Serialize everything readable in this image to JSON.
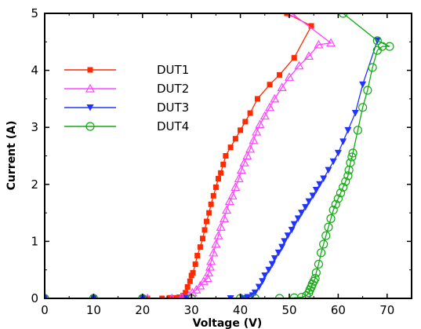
{
  "chart_data": {
    "type": "line",
    "xlabel": "Voltage (V)",
    "ylabel": "Current (A)",
    "xlim": [
      0,
      75
    ],
    "ylim": [
      0,
      5
    ],
    "xticks": [
      0,
      10,
      20,
      30,
      40,
      50,
      60,
      70
    ],
    "yticks": [
      0,
      1,
      2,
      3,
      4,
      5
    ],
    "grid": false,
    "legend_position": "upper-left",
    "series": [
      {
        "name": "DUT1",
        "color": "#ff2a00",
        "marker": "square",
        "x": [
          0,
          10,
          21,
          24,
          25.5,
          26.5,
          27.5,
          28.3,
          28.8,
          29.2,
          29.7,
          30,
          30.3,
          30.8,
          31.2,
          31.8,
          32.3,
          32.7,
          33.1,
          33.6,
          34,
          34.5,
          35,
          35.5,
          36,
          36.5,
          37,
          38,
          39,
          40,
          41,
          42,
          43.5,
          46,
          48,
          51,
          54.5,
          49.5
        ],
        "y": [
          0,
          0,
          0,
          0,
          0.01,
          0.01,
          0.02,
          0.05,
          0.1,
          0.2,
          0.3,
          0.4,
          0.45,
          0.6,
          0.75,
          0.9,
          1.05,
          1.2,
          1.35,
          1.5,
          1.65,
          1.8,
          1.95,
          2.1,
          2.2,
          2.35,
          2.5,
          2.65,
          2.8,
          2.95,
          3.1,
          3.25,
          3.5,
          3.75,
          3.92,
          4.22,
          4.78,
          5
        ]
      },
      {
        "name": "DUT2",
        "color": "#ff44ff",
        "marker": "triangle-up",
        "x": [
          0,
          10,
          21,
          26,
          28,
          29.5,
          30.2,
          31,
          31.8,
          32.5,
          33.3,
          33.5,
          33.8,
          34,
          34.5,
          35,
          35.5,
          36,
          36.7,
          37.2,
          37.8,
          38.4,
          39,
          39.7,
          40.2,
          40.8,
          41.4,
          42,
          42.7,
          43.3,
          44,
          45,
          46,
          47,
          48.5,
          50,
          52,
          54,
          56,
          58.5,
          50.5
        ],
        "y": [
          0,
          0,
          0,
          0,
          0.02,
          0.05,
          0.1,
          0.15,
          0.22,
          0.3,
          0.35,
          0.45,
          0.55,
          0.65,
          0.8,
          0.95,
          1.1,
          1.25,
          1.4,
          1.55,
          1.7,
          1.8,
          1.95,
          2.1,
          2.25,
          2.38,
          2.5,
          2.62,
          2.77,
          2.92,
          3.05,
          3.2,
          3.35,
          3.5,
          3.7,
          3.88,
          4.08,
          4.25,
          4.45,
          4.48,
          5
        ]
      },
      {
        "name": "DUT3",
        "color": "#2233ff",
        "marker": "triangle-down",
        "x": [
          0,
          10,
          20,
          29,
          38,
          40.5,
          41.5,
          42.5,
          43,
          43.8,
          44.5,
          45,
          45.8,
          46.5,
          47,
          47.8,
          48.5,
          49,
          49.7,
          50.5,
          51,
          51.8,
          52.5,
          53.3,
          54,
          54.8,
          55.5,
          56.2,
          57,
          58,
          59,
          60,
          61,
          62,
          63.5,
          65,
          68
        ],
        "y": [
          0,
          0,
          0,
          0,
          0,
          0,
          0.02,
          0.05,
          0.1,
          0.2,
          0.3,
          0.4,
          0.5,
          0.6,
          0.7,
          0.8,
          0.9,
          1.0,
          1.1,
          1.2,
          1.3,
          1.4,
          1.5,
          1.6,
          1.7,
          1.8,
          1.9,
          2.0,
          2.1,
          2.25,
          2.4,
          2.55,
          2.75,
          2.95,
          3.25,
          3.75,
          4.52
        ]
      },
      {
        "name": "DUT4",
        "color": "#11aa11",
        "marker": "circle",
        "x": [
          0,
          10,
          20,
          30,
          40,
          43,
          48,
          51,
          52.5,
          53.5,
          54,
          54.2,
          54.5,
          54.7,
          55,
          55.3,
          55.5,
          56,
          56.5,
          57,
          57.5,
          58,
          58.5,
          59,
          59.5,
          60,
          60.5,
          61,
          61.5,
          62,
          62.2,
          62.5,
          62.8,
          63,
          64,
          65,
          66,
          67,
          68,
          69,
          70.5,
          68,
          61
        ],
        "y": [
          0,
          0,
          0,
          0,
          0,
          0,
          0,
          0.01,
          0.02,
          0.05,
          0.1,
          0.15,
          0.2,
          0.25,
          0.3,
          0.35,
          0.45,
          0.6,
          0.8,
          0.95,
          1.1,
          1.25,
          1.4,
          1.55,
          1.65,
          1.75,
          1.85,
          1.95,
          2.05,
          2.15,
          2.25,
          2.38,
          2.48,
          2.55,
          2.95,
          3.35,
          3.65,
          4.05,
          4.35,
          4.42,
          4.42,
          4.52,
          5
        ]
      }
    ]
  }
}
